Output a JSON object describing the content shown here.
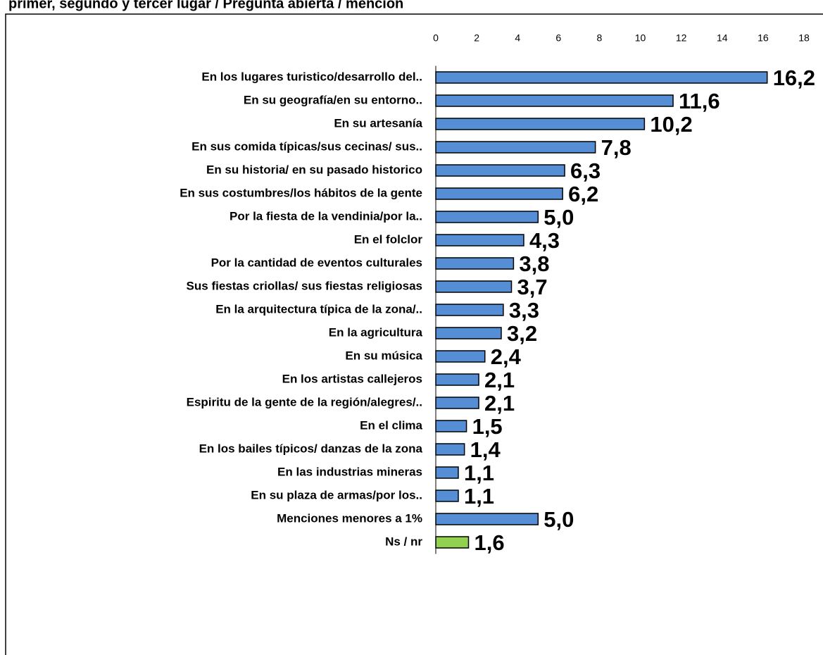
{
  "chart_data": {
    "type": "barh",
    "title": "primer, segundo y tercer lugar / Pregunta abierta / mención",
    "categories": [
      "En los lugares turistico/desarrollo del..",
      "En su geografía/en su entorno..",
      "En su artesanía",
      "En sus comida típicas/sus cecinas/ sus..",
      "En su historia/ en su pasado historico",
      "En sus costumbres/los hábitos de la gente",
      "Por la fiesta de la vendinia/por la..",
      "En el folclor",
      "Por la cantidad de eventos culturales",
      "Sus fiestas criollas/ sus fiestas religiosas",
      "En la arquitectura típica de la zona/..",
      "En la agricultura",
      "En su música",
      "En los artistas callejeros",
      "Espiritu de la gente de la región/alegres/..",
      "En el clima",
      "En los bailes típicos/ danzas de la zona",
      "En las industrias mineras",
      "En su plaza de armas/por los..",
      "Menciones menores a 1%",
      "Ns / nr"
    ],
    "values": [
      16.2,
      11.6,
      10.2,
      7.8,
      6.3,
      6.2,
      5.0,
      4.3,
      3.8,
      3.7,
      3.3,
      3.2,
      2.4,
      2.1,
      2.1,
      1.5,
      1.4,
      1.1,
      1.1,
      5.0,
      1.6
    ],
    "value_labels": [
      "16,2",
      "11,6",
      "10,2",
      "7,8",
      "6,3",
      "6,2",
      "5,0",
      "4,3",
      "3,8",
      "3,7",
      "3,3",
      "3,2",
      "2,4",
      "2,1",
      "2,1",
      "1,5",
      "1,4",
      "1,1",
      "1,1",
      "5,0",
      "1,6"
    ],
    "colors": [
      "#558ed5",
      "#558ed5",
      "#558ed5",
      "#558ed5",
      "#558ed5",
      "#558ed5",
      "#558ed5",
      "#558ed5",
      "#558ed5",
      "#558ed5",
      "#558ed5",
      "#558ed5",
      "#558ed5",
      "#558ed5",
      "#558ed5",
      "#558ed5",
      "#558ed5",
      "#558ed5",
      "#558ed5",
      "#558ed5",
      "#92d050"
    ],
    "xlim": [
      0,
      18
    ],
    "xticks": [
      0,
      2,
      4,
      6,
      8,
      10,
      12,
      14,
      16,
      18
    ]
  }
}
